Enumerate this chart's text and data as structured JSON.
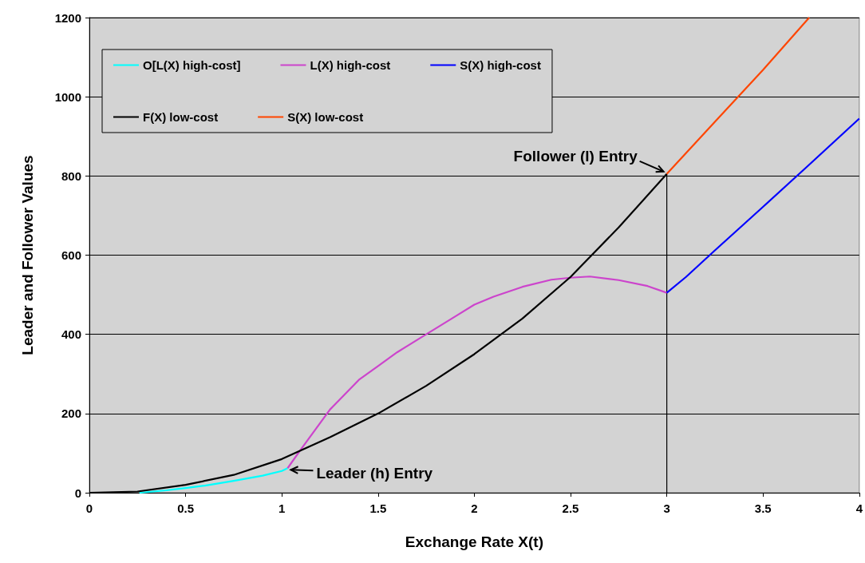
{
  "chart_data": {
    "type": "line",
    "xlabel": "Exchange Rate X(t)",
    "ylabel": "Leader and Follower Values",
    "xlim": [
      0,
      4
    ],
    "xticks": [
      0,
      0.5,
      1,
      1.5,
      2,
      2.5,
      3,
      3.5,
      4
    ],
    "ylim": [
      0,
      1200
    ],
    "yticks": [
      0,
      200,
      400,
      600,
      800,
      1000,
      1200
    ],
    "grid": "y",
    "legend": "top left",
    "marker": "none",
    "line_style": "solid",
    "series": [
      {
        "name": "O[L(X) high-cost]",
        "color": "#00ffff",
        "x": [
          0.26,
          0.4,
          0.5,
          0.6,
          0.75,
          0.9,
          1.0,
          1.03
        ],
        "values": [
          0,
          6,
          12,
          18,
          30,
          43,
          55,
          62
        ]
      },
      {
        "name": "L(X) high-cost",
        "color": "#cc44cc",
        "x": [
          1.03,
          1.1,
          1.25,
          1.4,
          1.5,
          1.6,
          1.75,
          1.9,
          2,
          2.1,
          2.25,
          2.4,
          2.5,
          2.6,
          2.75,
          2.9,
          3
        ],
        "values": [
          62,
          110,
          210,
          285,
          320,
          355,
          400,
          445,
          475,
          495,
          520,
          538,
          543,
          546,
          537,
          522,
          505
        ]
      },
      {
        "name": "S(X) high-cost",
        "color": "#0000ff",
        "x": [
          3,
          3.1,
          3.25,
          3.5,
          3.75,
          4
        ],
        "values": [
          505,
          545,
          612,
          722,
          833,
          945
        ]
      },
      {
        "name": "F(X) low-cost",
        "color": "#000000",
        "x": [
          0,
          0.25,
          0.5,
          0.75,
          1,
          1.25,
          1.5,
          1.75,
          2,
          2.25,
          2.5,
          2.75,
          3
        ],
        "values": [
          0,
          3,
          20,
          45,
          85,
          140,
          200,
          270,
          350,
          440,
          545,
          670,
          805
        ]
      },
      {
        "name": "S(X) low-cost",
        "color": "#ff4500",
        "x": [
          3,
          3.25,
          3.5,
          3.74
        ],
        "values": [
          805,
          937,
          1068,
          1200
        ]
      },
      {
        "color": "#000000",
        "x": [
          3,
          3
        ],
        "values": [
          0,
          805
        ]
      }
    ],
    "annotations": [
      {
        "text": "Leader (h) Entry",
        "x": 1.03,
        "y": 62
      },
      {
        "text": "Follower (l) Entry",
        "x": 3,
        "y": 805
      }
    ]
  }
}
